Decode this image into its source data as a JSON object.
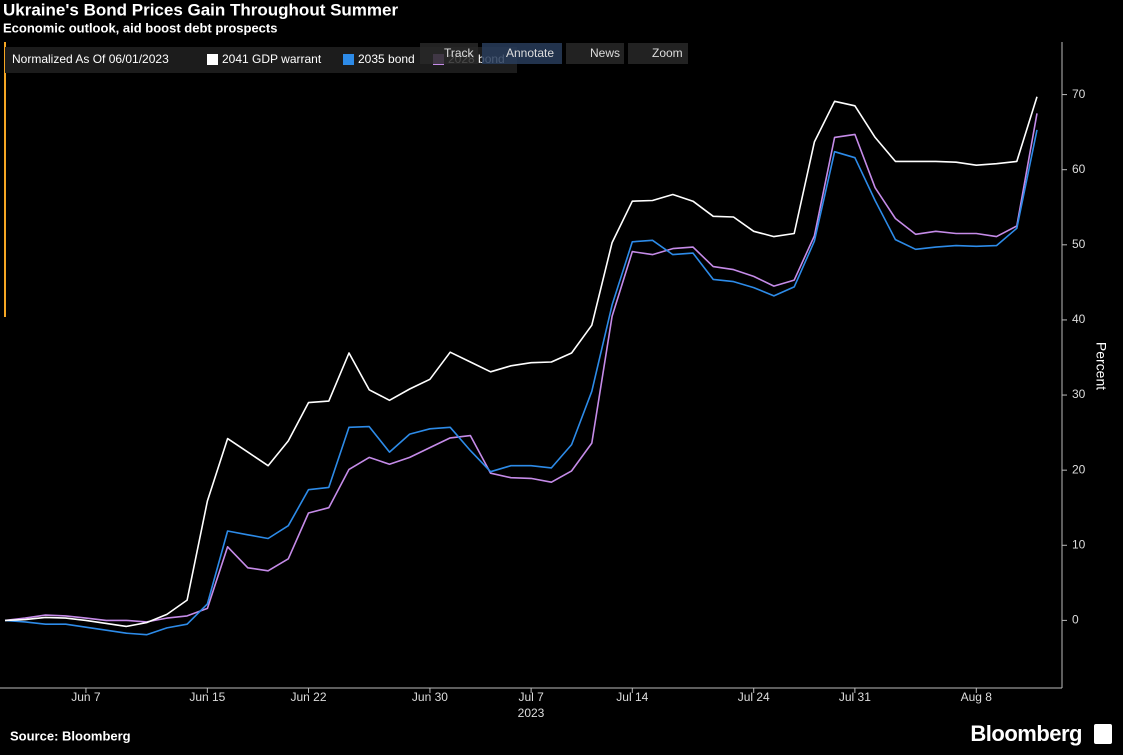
{
  "chart_data": {
    "type": "line",
    "title": "Ukraine's Bond Prices Gain Throughout Summer",
    "subtitle": "Economic outlook, aid boost debt prospects",
    "legend_title": "Normalized As Of 06/01/2023",
    "ylabel": "Percent",
    "xlabel": "2023",
    "source": "Source: Bloomberg",
    "brand": "Bloomberg",
    "toolbar": [
      "Track",
      "Annotate",
      "News",
      "Zoom"
    ],
    "x": [
      "2023-06-01",
      "2023-06-02",
      "2023-06-05",
      "2023-06-06",
      "2023-06-07",
      "2023-06-08",
      "2023-06-09",
      "2023-06-12",
      "2023-06-13",
      "2023-06-14",
      "2023-06-15",
      "2023-06-16",
      "2023-06-19",
      "2023-06-20",
      "2023-06-21",
      "2023-06-22",
      "2023-06-23",
      "2023-06-26",
      "2023-06-27",
      "2023-06-28",
      "2023-06-29",
      "2023-06-30",
      "2023-07-03",
      "2023-07-04",
      "2023-07-05",
      "2023-07-06",
      "2023-07-07",
      "2023-07-10",
      "2023-07-11",
      "2023-07-12",
      "2023-07-13",
      "2023-07-14",
      "2023-07-17",
      "2023-07-18",
      "2023-07-19",
      "2023-07-20",
      "2023-07-21",
      "2023-07-24",
      "2023-07-25",
      "2023-07-26",
      "2023-07-27",
      "2023-07-28",
      "2023-07-31",
      "2023-08-01",
      "2023-08-02",
      "2023-08-03",
      "2023-08-04",
      "2023-08-07",
      "2023-08-08",
      "2023-08-09",
      "2023-08-10",
      "2023-08-11"
    ],
    "xticks": [
      {
        "value": "2023-06-07",
        "label": "Jun 7"
      },
      {
        "value": "2023-06-15",
        "label": "Jun 15"
      },
      {
        "value": "2023-06-22",
        "label": "Jun 22"
      },
      {
        "value": "2023-06-30",
        "label": "Jun 30"
      },
      {
        "value": "2023-07-07",
        "label": "Jul 7"
      },
      {
        "value": "2023-07-14",
        "label": "Jul 14"
      },
      {
        "value": "2023-07-24",
        "label": "Jul 24"
      },
      {
        "value": "2023-07-31",
        "label": "Jul 31"
      },
      {
        "value": "2023-08-08",
        "label": "Aug 8"
      }
    ],
    "ylim": [
      -9,
      77
    ],
    "yticks": [
      0,
      10,
      20,
      30,
      40,
      50,
      60,
      70
    ],
    "series": [
      {
        "name": "2041 GDP warrant",
        "color": "#ffffff",
        "values": [
          0,
          0.1,
          0.4,
          0.3,
          0,
          -0.4,
          -0.8,
          -0.3,
          0.8,
          2.7,
          15.9,
          24.2,
          22.4,
          20.6,
          23.9,
          29.0,
          29.2,
          35.6,
          30.7,
          29.3,
          30.8,
          32.1,
          35.7,
          34.4,
          33.1,
          33.9,
          34.3,
          34.4,
          35.6,
          39.3,
          50.3,
          55.8,
          55.9,
          56.7,
          55.8,
          53.8,
          53.7,
          51.8,
          51.1,
          51.5,
          63.7,
          69.1,
          68.5,
          64.3,
          61.1,
          61.1,
          61.1,
          61.0,
          60.6,
          60.8,
          61.1,
          69.7
        ]
      },
      {
        "name": "2035 bond",
        "color": "#2d8be8",
        "values": [
          0,
          -0.2,
          -0.5,
          -0.5,
          -0.9,
          -1.3,
          -1.7,
          -1.9,
          -1.0,
          -0.5,
          2.2,
          11.9,
          11.4,
          10.9,
          12.6,
          17.4,
          17.7,
          25.7,
          25.8,
          22.4,
          24.8,
          25.5,
          25.7,
          22.6,
          19.8,
          20.6,
          20.6,
          20.3,
          23.4,
          30.5,
          42.0,
          50.4,
          50.6,
          48.7,
          48.9,
          45.4,
          45.1,
          44.3,
          43.2,
          44.4,
          50.5,
          62.4,
          61.6,
          55.9,
          50.7,
          49.4,
          49.7,
          49.9,
          49.8,
          49.9,
          52.2,
          65.3
        ]
      },
      {
        "name": "2028 bond",
        "color": "#c58be8",
        "values": [
          0,
          0.3,
          0.7,
          0.6,
          0.3,
          0,
          0,
          -0.2,
          0.3,
          0.6,
          1.6,
          9.8,
          7.0,
          6.6,
          8.2,
          14.3,
          15.0,
          20.1,
          21.7,
          20.8,
          21.7,
          23.0,
          24.3,
          24.6,
          19.6,
          19.0,
          18.9,
          18.4,
          19.9,
          23.6,
          40.5,
          49.1,
          48.7,
          49.5,
          49.7,
          47.1,
          46.7,
          45.8,
          44.5,
          45.3,
          51.2,
          64.3,
          64.7,
          57.6,
          53.5,
          51.4,
          51.8,
          51.5,
          51.5,
          51.1,
          52.5,
          67.5
        ]
      }
    ]
  }
}
